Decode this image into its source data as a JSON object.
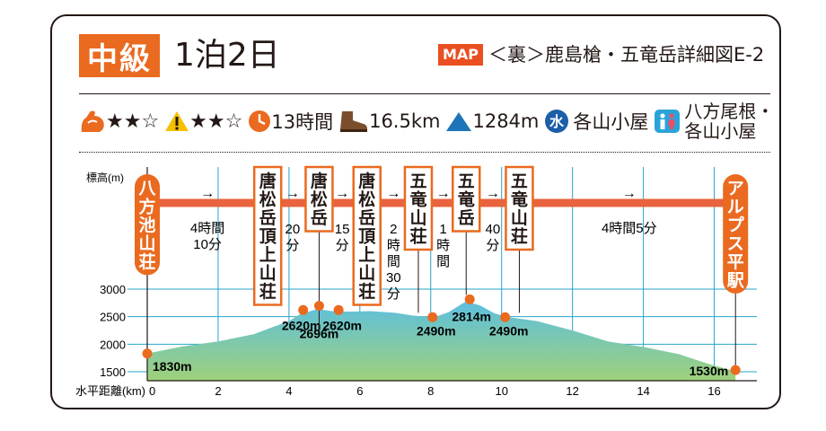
{
  "header": {
    "level": "中級",
    "duration": "1泊2日",
    "map_tag": "MAP",
    "map_ref": "＜裏＞鹿島槍・五竜岳詳細図E-2"
  },
  "stats": {
    "stamina_stars": "★★☆",
    "danger_stars": "★★☆",
    "time": "13時間",
    "distance": "16.5km",
    "elevation_gain": "1284m",
    "water_label": "水",
    "water": "各山小屋",
    "toilet": "八方尾根・\n各山小屋"
  },
  "colors": {
    "accent": "#ea6a1f",
    "route_bar": "#e9633e",
    "guide_line": "#27a5c9",
    "profile_top": "#5cbfe0",
    "profile_bottom": "#9fd17a"
  },
  "chart_data": {
    "type": "area",
    "ylabel": "標高(m)",
    "xlabel": "水平距離(km)",
    "xlim": [
      0,
      17
    ],
    "ylim": [
      1500,
      3000
    ],
    "x_ticks": [
      0,
      2,
      4,
      6,
      8,
      10,
      12,
      14,
      16
    ],
    "y_ticks": [
      1500,
      2000,
      2500,
      3000
    ],
    "profile": [
      [
        0,
        1830
      ],
      [
        1,
        1960
      ],
      [
        2,
        2050
      ],
      [
        3,
        2180
      ],
      [
        3.5,
        2300
      ],
      [
        4,
        2420
      ],
      [
        4.3,
        2540
      ],
      [
        4.8,
        2640
      ],
      [
        5.2,
        2600
      ],
      [
        5.7,
        2590
      ],
      [
        6.3,
        2600
      ],
      [
        7,
        2570
      ],
      [
        7.5,
        2520
      ],
      [
        8.1,
        2490
      ],
      [
        8.5,
        2580
      ],
      [
        9,
        2780
      ],
      [
        9.4,
        2700
      ],
      [
        9.8,
        2560
      ],
      [
        10.2,
        2490
      ],
      [
        11,
        2420
      ],
      [
        12,
        2250
      ],
      [
        13,
        2050
      ],
      [
        14,
        1950
      ],
      [
        15,
        1820
      ],
      [
        15.8,
        1650
      ],
      [
        16.4,
        1540
      ],
      [
        16.6,
        1530
      ]
    ],
    "points": [
      {
        "name": "八方池山荘",
        "x": 0,
        "elev": 1830,
        "label": "1830m"
      },
      {
        "name": "唐松岳頂上山荘",
        "x": 4.4,
        "elev": 2620,
        "label": "2620m"
      },
      {
        "name": "唐松岳",
        "x": 4.85,
        "elev": 2696,
        "label": "2696m"
      },
      {
        "name": "唐松岳頂上山荘",
        "x": 5.4,
        "elev": 2620,
        "label": "2620m"
      },
      {
        "name": "五竜山荘",
        "x": 8.05,
        "elev": 2490,
        "label": "2490m"
      },
      {
        "name": "五竜岳",
        "x": 9.1,
        "elev": 2814,
        "label": "2814m"
      },
      {
        "name": "五竜山荘",
        "x": 10.1,
        "elev": 2490,
        "label": "2490m"
      },
      {
        "name": "アルプス平駅",
        "x": 16.6,
        "elev": 1530,
        "label": "1530m"
      }
    ],
    "stations": [
      {
        "name": "八方池山荘",
        "x": 0,
        "style": "orange"
      },
      {
        "name": "唐松岳頂上山荘",
        "x": 3.4,
        "style": "box"
      },
      {
        "name": "唐松岳",
        "x": 4.85,
        "style": "box"
      },
      {
        "name": "唐松岳頂上山荘",
        "x": 6.2,
        "style": "box"
      },
      {
        "name": "五竜山荘",
        "x": 7.65,
        "style": "box"
      },
      {
        "name": "五竜岳",
        "x": 9.0,
        "style": "box"
      },
      {
        "name": "五竜山荘",
        "x": 10.5,
        "style": "box"
      },
      {
        "name": "アルプス平駅",
        "x": 16.6,
        "style": "orange"
      }
    ],
    "segments": [
      {
        "time": "4時間\n10分",
        "layout": "h",
        "x": 1.7
      },
      {
        "time": "20分",
        "layout": "v",
        "x": 4.1
      },
      {
        "time": "15分",
        "layout": "v",
        "x": 5.5
      },
      {
        "time": "2時間30分",
        "layout": "v",
        "x": 6.95
      },
      {
        "time": "1時間",
        "layout": "v",
        "x": 8.35
      },
      {
        "time": "40分",
        "layout": "v",
        "x": 9.75
      },
      {
        "time": "4時間5分",
        "layout": "h",
        "x": 13.6
      }
    ]
  }
}
